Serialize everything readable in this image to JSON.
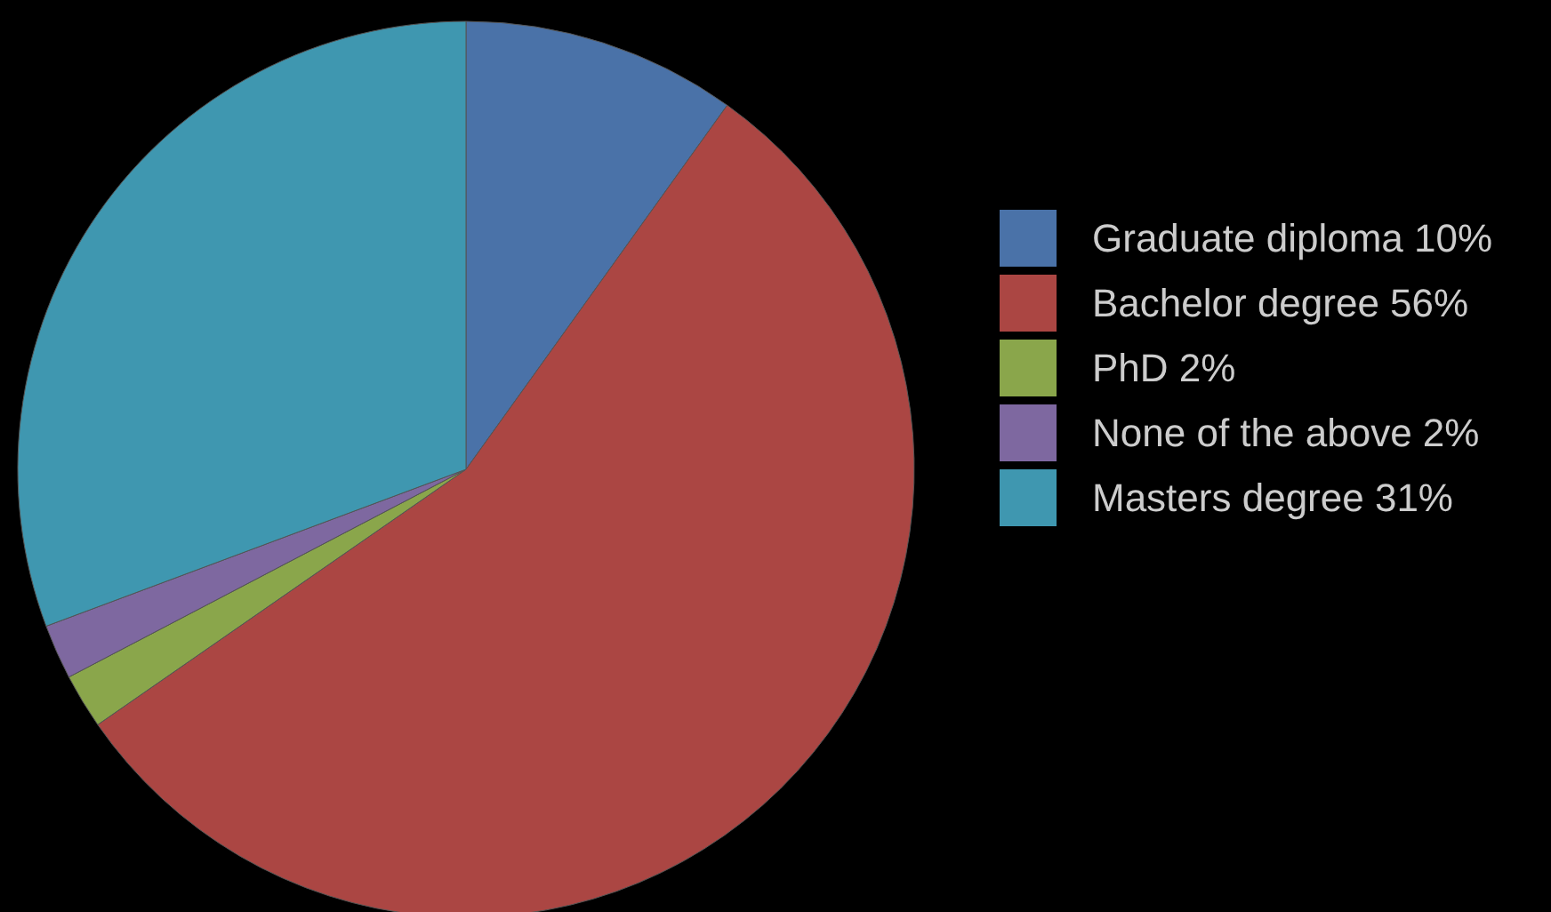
{
  "chart_data": {
    "type": "pie",
    "categories": [
      "Graduate diploma 10%",
      "Bachelor degree 56%",
      "PhD 2%",
      "None of the above 2%",
      "Masters degree 31%"
    ],
    "values": [
      10,
      56,
      2,
      2,
      31
    ],
    "colors": [
      "#4a72a8",
      "#ab4643",
      "#8aa64b",
      "#7e68a0",
      "#3f97b0"
    ],
    "legend": "right"
  }
}
